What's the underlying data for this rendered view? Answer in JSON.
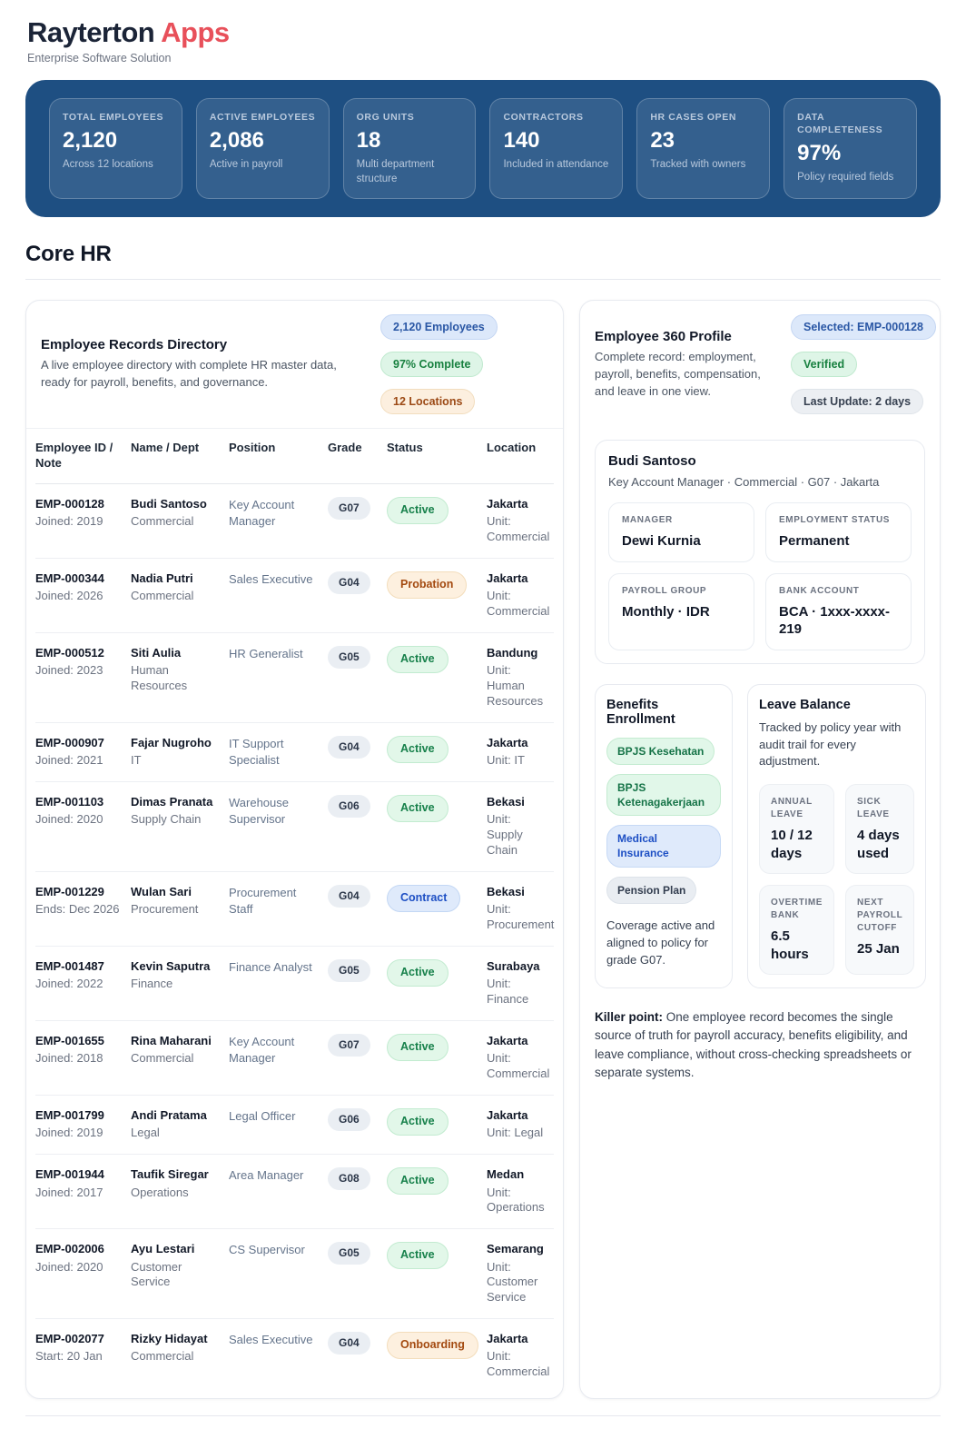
{
  "brand": {
    "name": "Rayterton",
    "accent": "Apps",
    "tagline": "Enterprise Software Solution"
  },
  "colors": {
    "hero_background": "#1e4f82",
    "accent_red": "#e8505a",
    "status_green": "#16804a",
    "status_amber": "#a3490f",
    "status_blue": "#1d4fc4"
  },
  "stats": [
    {
      "label": "TOTAL EMPLOYEES",
      "value": "2,120",
      "sub": "Across 12 locations"
    },
    {
      "label": "ACTIVE EMPLOYEES",
      "value": "2,086",
      "sub": "Active in payroll"
    },
    {
      "label": "ORG UNITS",
      "value": "18",
      "sub": "Multi department structure"
    },
    {
      "label": "CONTRACTORS",
      "value": "140",
      "sub": "Included in attendance"
    },
    {
      "label": "HR CASES OPEN",
      "value": "23",
      "sub": "Tracked with owners"
    },
    {
      "label": "DATA COMPLETENESS",
      "value": "97%",
      "sub": "Policy required fields"
    }
  ],
  "section": {
    "title": "Core HR"
  },
  "directory": {
    "title": "Employee Records Directory",
    "description": "A live employee directory with complete HR master data, ready for payroll, benefits, and governance.",
    "badges": [
      {
        "label": "2,120 Employees",
        "type": "blue"
      },
      {
        "label": "97% Complete",
        "type": "green"
      },
      {
        "label": "12 Locations",
        "type": "amber"
      }
    ],
    "columns": [
      "Employee ID / Note",
      "Name / Dept",
      "Position",
      "Grade",
      "Status",
      "Location"
    ],
    "rows": [
      {
        "id": "EMP-000128",
        "note": "Joined: 2019",
        "name": "Budi Santoso",
        "dept": "Commercial",
        "position": "Key Account Manager",
        "grade": "G07",
        "status": "Active",
        "status_type": "active",
        "city": "Jakarta",
        "unit": "Unit: Commercial"
      },
      {
        "id": "EMP-000344",
        "note": "Joined: 2026",
        "name": "Nadia Putri",
        "dept": "Commercial",
        "position": "Sales Executive",
        "grade": "G04",
        "status": "Probation",
        "status_type": "warn",
        "city": "Jakarta",
        "unit": "Unit: Commercial"
      },
      {
        "id": "EMP-000512",
        "note": "Joined: 2023",
        "name": "Siti Aulia",
        "dept": "Human Resources",
        "position": "HR Generalist",
        "grade": "G05",
        "status": "Active",
        "status_type": "active",
        "city": "Bandung",
        "unit": "Unit: Human Resources"
      },
      {
        "id": "EMP-000907",
        "note": "Joined: 2021",
        "name": "Fajar Nugroho",
        "dept": "IT",
        "position": "IT Support Specialist",
        "grade": "G04",
        "status": "Active",
        "status_type": "active",
        "city": "Jakarta",
        "unit": "Unit: IT"
      },
      {
        "id": "EMP-001103",
        "note": "Joined: 2020",
        "name": "Dimas Pranata",
        "dept": "Supply Chain",
        "position": "Warehouse Supervisor",
        "grade": "G06",
        "status": "Active",
        "status_type": "active",
        "city": "Bekasi",
        "unit": "Unit: Supply Chain"
      },
      {
        "id": "EMP-001229",
        "note": "Ends: Dec 2026",
        "name": "Wulan Sari",
        "dept": "Procurement",
        "position": "Procurement Staff",
        "grade": "G04",
        "status": "Contract",
        "status_type": "contract",
        "city": "Bekasi",
        "unit": "Unit: Procurement"
      },
      {
        "id": "EMP-001487",
        "note": "Joined: 2022",
        "name": "Kevin Saputra",
        "dept": "Finance",
        "position": "Finance Analyst",
        "grade": "G05",
        "status": "Active",
        "status_type": "active",
        "city": "Surabaya",
        "unit": "Unit: Finance"
      },
      {
        "id": "EMP-001655",
        "note": "Joined: 2018",
        "name": "Rina Maharani",
        "dept": "Commercial",
        "position": "Key Account Manager",
        "grade": "G07",
        "status": "Active",
        "status_type": "active",
        "city": "Jakarta",
        "unit": "Unit: Commercial"
      },
      {
        "id": "EMP-001799",
        "note": "Joined: 2019",
        "name": "Andi Pratama",
        "dept": "Legal",
        "position": "Legal Officer",
        "grade": "G06",
        "status": "Active",
        "status_type": "active",
        "city": "Jakarta",
        "unit": "Unit: Legal"
      },
      {
        "id": "EMP-001944",
        "note": "Joined: 2017",
        "name": "Taufik Siregar",
        "dept": "Operations",
        "position": "Area Manager",
        "grade": "G08",
        "status": "Active",
        "status_type": "active",
        "city": "Medan",
        "unit": "Unit: Operations"
      },
      {
        "id": "EMP-002006",
        "note": "Joined: 2020",
        "name": "Ayu Lestari",
        "dept": "Customer Service",
        "position": "CS Supervisor",
        "grade": "G05",
        "status": "Active",
        "status_type": "active",
        "city": "Semarang",
        "unit": "Unit: Customer Service"
      },
      {
        "id": "EMP-002077",
        "note": "Start: 20 Jan",
        "name": "Rizky Hidayat",
        "dept": "Commercial",
        "position": "Sales Executive",
        "grade": "G04",
        "status": "Onboarding",
        "status_type": "warn",
        "city": "Jakarta",
        "unit": "Unit: Commercial"
      }
    ]
  },
  "profile": {
    "title": "Employee 360 Profile",
    "description": "Complete record: employment, payroll, benefits, compensation, and leave in one view.",
    "badges": [
      {
        "label": "Selected: EMP-000128",
        "type": "blue"
      },
      {
        "label": "Verified",
        "type": "green"
      },
      {
        "label": "Last Update: 2 days",
        "type": "gray"
      }
    ],
    "employee": {
      "name": "Budi Santoso",
      "summary": "Key Account Manager · Commercial · G07 · Jakarta",
      "fields": [
        {
          "label": "MANAGER",
          "value": "Dewi Kurnia"
        },
        {
          "label": "EMPLOYMENT STATUS",
          "value": "Permanent"
        },
        {
          "label": "PAYROLL GROUP",
          "value": "Monthly · IDR"
        },
        {
          "label": "BANK ACCOUNT",
          "value": "BCA · 1xxx-xxxx-219"
        }
      ]
    },
    "benefits": {
      "title": "Benefits Enrollment",
      "plans": [
        {
          "label": "BPJS Kesehatan",
          "type": "green"
        },
        {
          "label": "BPJS Ketenagakerjaan",
          "type": "green"
        },
        {
          "label": "Medical Insurance",
          "type": "blue"
        },
        {
          "label": "Pension Plan",
          "type": "gray"
        }
      ],
      "note": "Coverage active and aligned to policy for grade G07."
    },
    "leave": {
      "title": "Leave Balance",
      "description": "Tracked by policy year with audit trail for every adjustment.",
      "tiles": [
        {
          "label": "ANNUAL LEAVE",
          "value": "10 / 12 days"
        },
        {
          "label": "SICK LEAVE",
          "value": "4 days used"
        },
        {
          "label": "OVERTIME BANK",
          "value": "6.5 hours"
        },
        {
          "label": "NEXT PAYROLL CUTOFF",
          "value": "25 Jan"
        }
      ]
    },
    "killer_point": {
      "label": "Killer point:",
      "text": "One employee record becomes the single source of truth for payroll accuracy, benefits eligibility, and leave compliance, without cross-checking spreadsheets or separate systems."
    }
  }
}
